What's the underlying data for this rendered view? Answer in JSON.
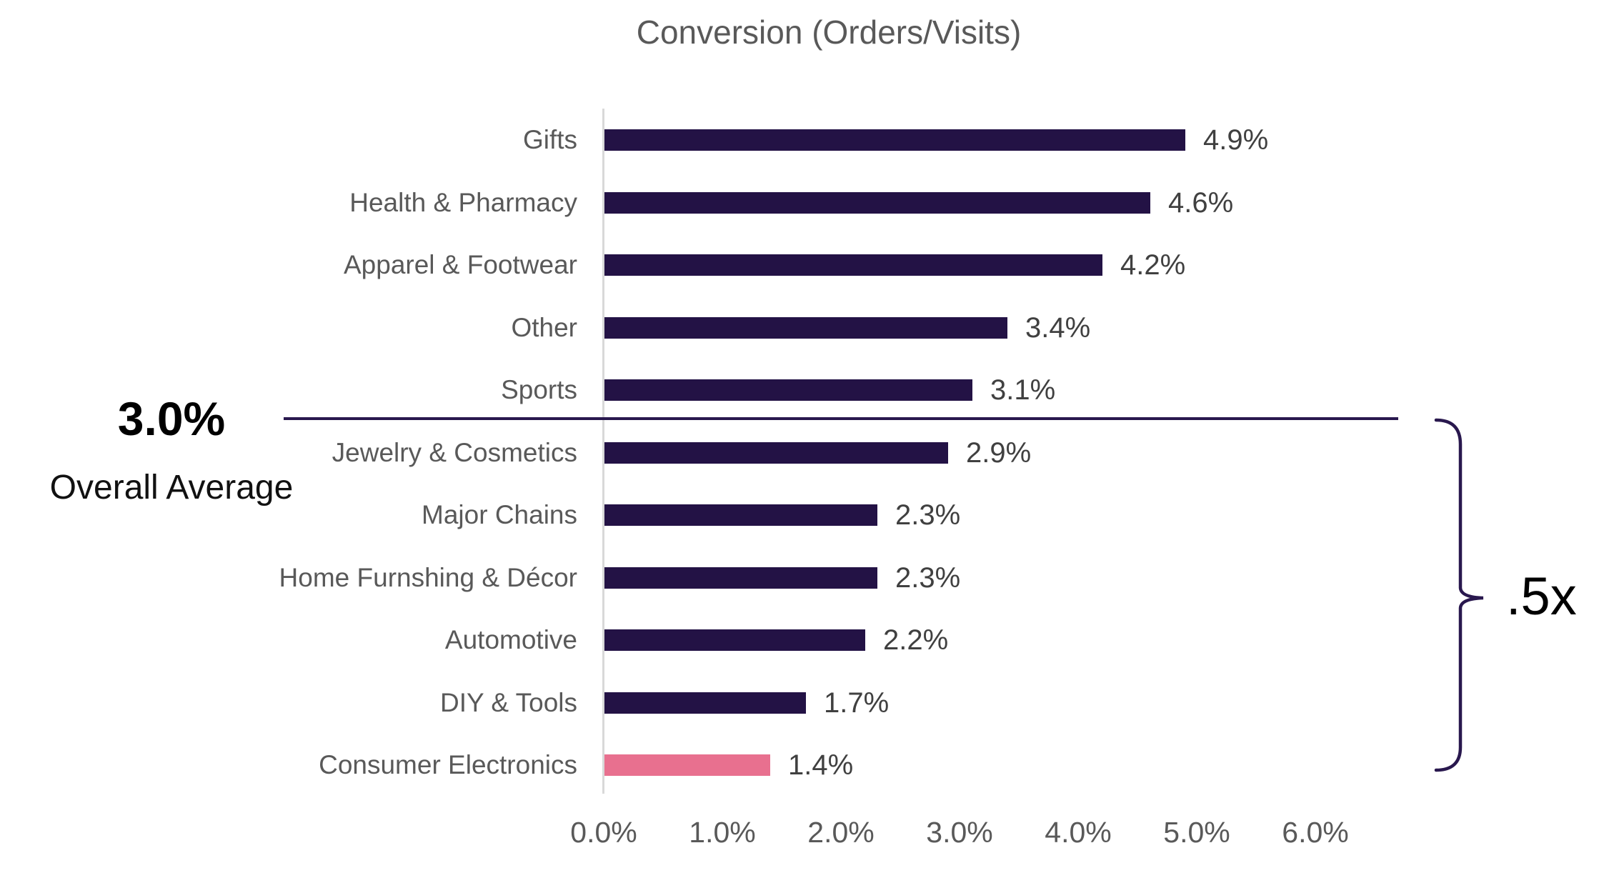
{
  "title": "Conversion (Orders/Visits)",
  "chart_data": {
    "type": "bar",
    "orientation": "horizontal",
    "title": "Conversion (Orders/Visits)",
    "categories": [
      "Gifts",
      "Health & Pharmacy",
      "Apparel & Footwear",
      "Other",
      "Sports",
      "Jewelry & Cosmetics",
      "Major Chains",
      "Home Furnshing & Décor",
      "Automotive",
      "DIY & Tools",
      "Consumer Electronics"
    ],
    "values": [
      4.9,
      4.6,
      4.2,
      3.4,
      3.1,
      2.9,
      2.3,
      2.3,
      2.2,
      1.7,
      1.4
    ],
    "value_labels": [
      "4.9%",
      "4.6%",
      "4.2%",
      "3.4%",
      "3.1%",
      "2.9%",
      "2.3%",
      "2.3%",
      "2.2%",
      "1.7%",
      "1.4%"
    ],
    "highlight_index": 10,
    "x_ticks": [
      "0.0%",
      "1.0%",
      "2.0%",
      "3.0%",
      "4.0%",
      "5.0%",
      "6.0%"
    ],
    "xlim": [
      0,
      6
    ],
    "grid": false,
    "legend": false,
    "annotations": {
      "average_value": "3.0%",
      "average_caption": "Overall Average",
      "average_line_position": "between Sports (3.1%) and Jewelry & Cosmetics (2.9%)",
      "brace_label": ".5x",
      "brace_span": "categories below the 3.0% overall average line"
    },
    "colors": {
      "bar": "#231245",
      "highlight": "#E8708F",
      "annotation_line": "#29184E",
      "axis_line": "#D9D9D9",
      "title_text": "#595959",
      "category_text": "#595959",
      "value_text": "#404040",
      "tick_text": "#595959",
      "annotation_text": "#000000"
    }
  }
}
